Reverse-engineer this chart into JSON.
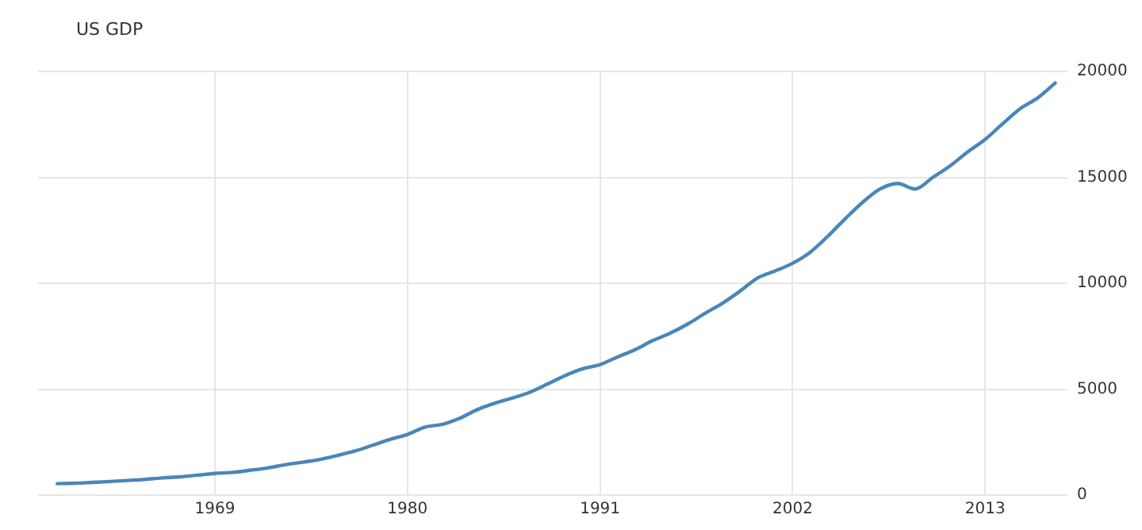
{
  "chart_data": {
    "type": "line",
    "title": "US GDP",
    "x": [
      1960,
      1961,
      1962,
      1963,
      1964,
      1965,
      1966,
      1967,
      1968,
      1969,
      1970,
      1971,
      1972,
      1973,
      1974,
      1975,
      1976,
      1977,
      1978,
      1979,
      1980,
      1981,
      1982,
      1983,
      1984,
      1985,
      1986,
      1987,
      1988,
      1989,
      1990,
      1991,
      1992,
      1993,
      1994,
      1995,
      1996,
      1997,
      1998,
      1999,
      2000,
      2001,
      2002,
      2003,
      2004,
      2005,
      2006,
      2007,
      2008,
      2009,
      2010,
      2011,
      2012,
      2013,
      2014,
      2015,
      2016,
      2017
    ],
    "series": [
      {
        "color": "#4a86b8",
        "values": [
          540,
          560,
          600,
          640,
          690,
          740,
          810,
          860,
          940,
          1020,
          1070,
          1170,
          1280,
          1430,
          1550,
          1680,
          1870,
          2080,
          2350,
          2630,
          2860,
          3210,
          3340,
          3630,
          4040,
          4340,
          4580,
          4860,
          5240,
          5640,
          5960,
          6160,
          6520,
          6860,
          7290,
          7640,
          8070,
          8580,
          9060,
          9630,
          10250,
          10580,
          10940,
          11460,
          12210,
          13040,
          13820,
          14450,
          14710,
          14450,
          14990,
          15540,
          16200,
          16790,
          17530,
          18240,
          18750,
          19450
        ]
      }
    ],
    "xlim": [
      1958.9,
      2017.7
    ],
    "xticks": [
      1969,
      1980,
      1991,
      2002,
      2013
    ],
    "ylim": [
      0,
      20000
    ],
    "yticks": [
      0,
      5000,
      10000,
      15000,
      20000
    ],
    "grid": true,
    "legend": false,
    "marker": "none",
    "line_style": "solid"
  }
}
